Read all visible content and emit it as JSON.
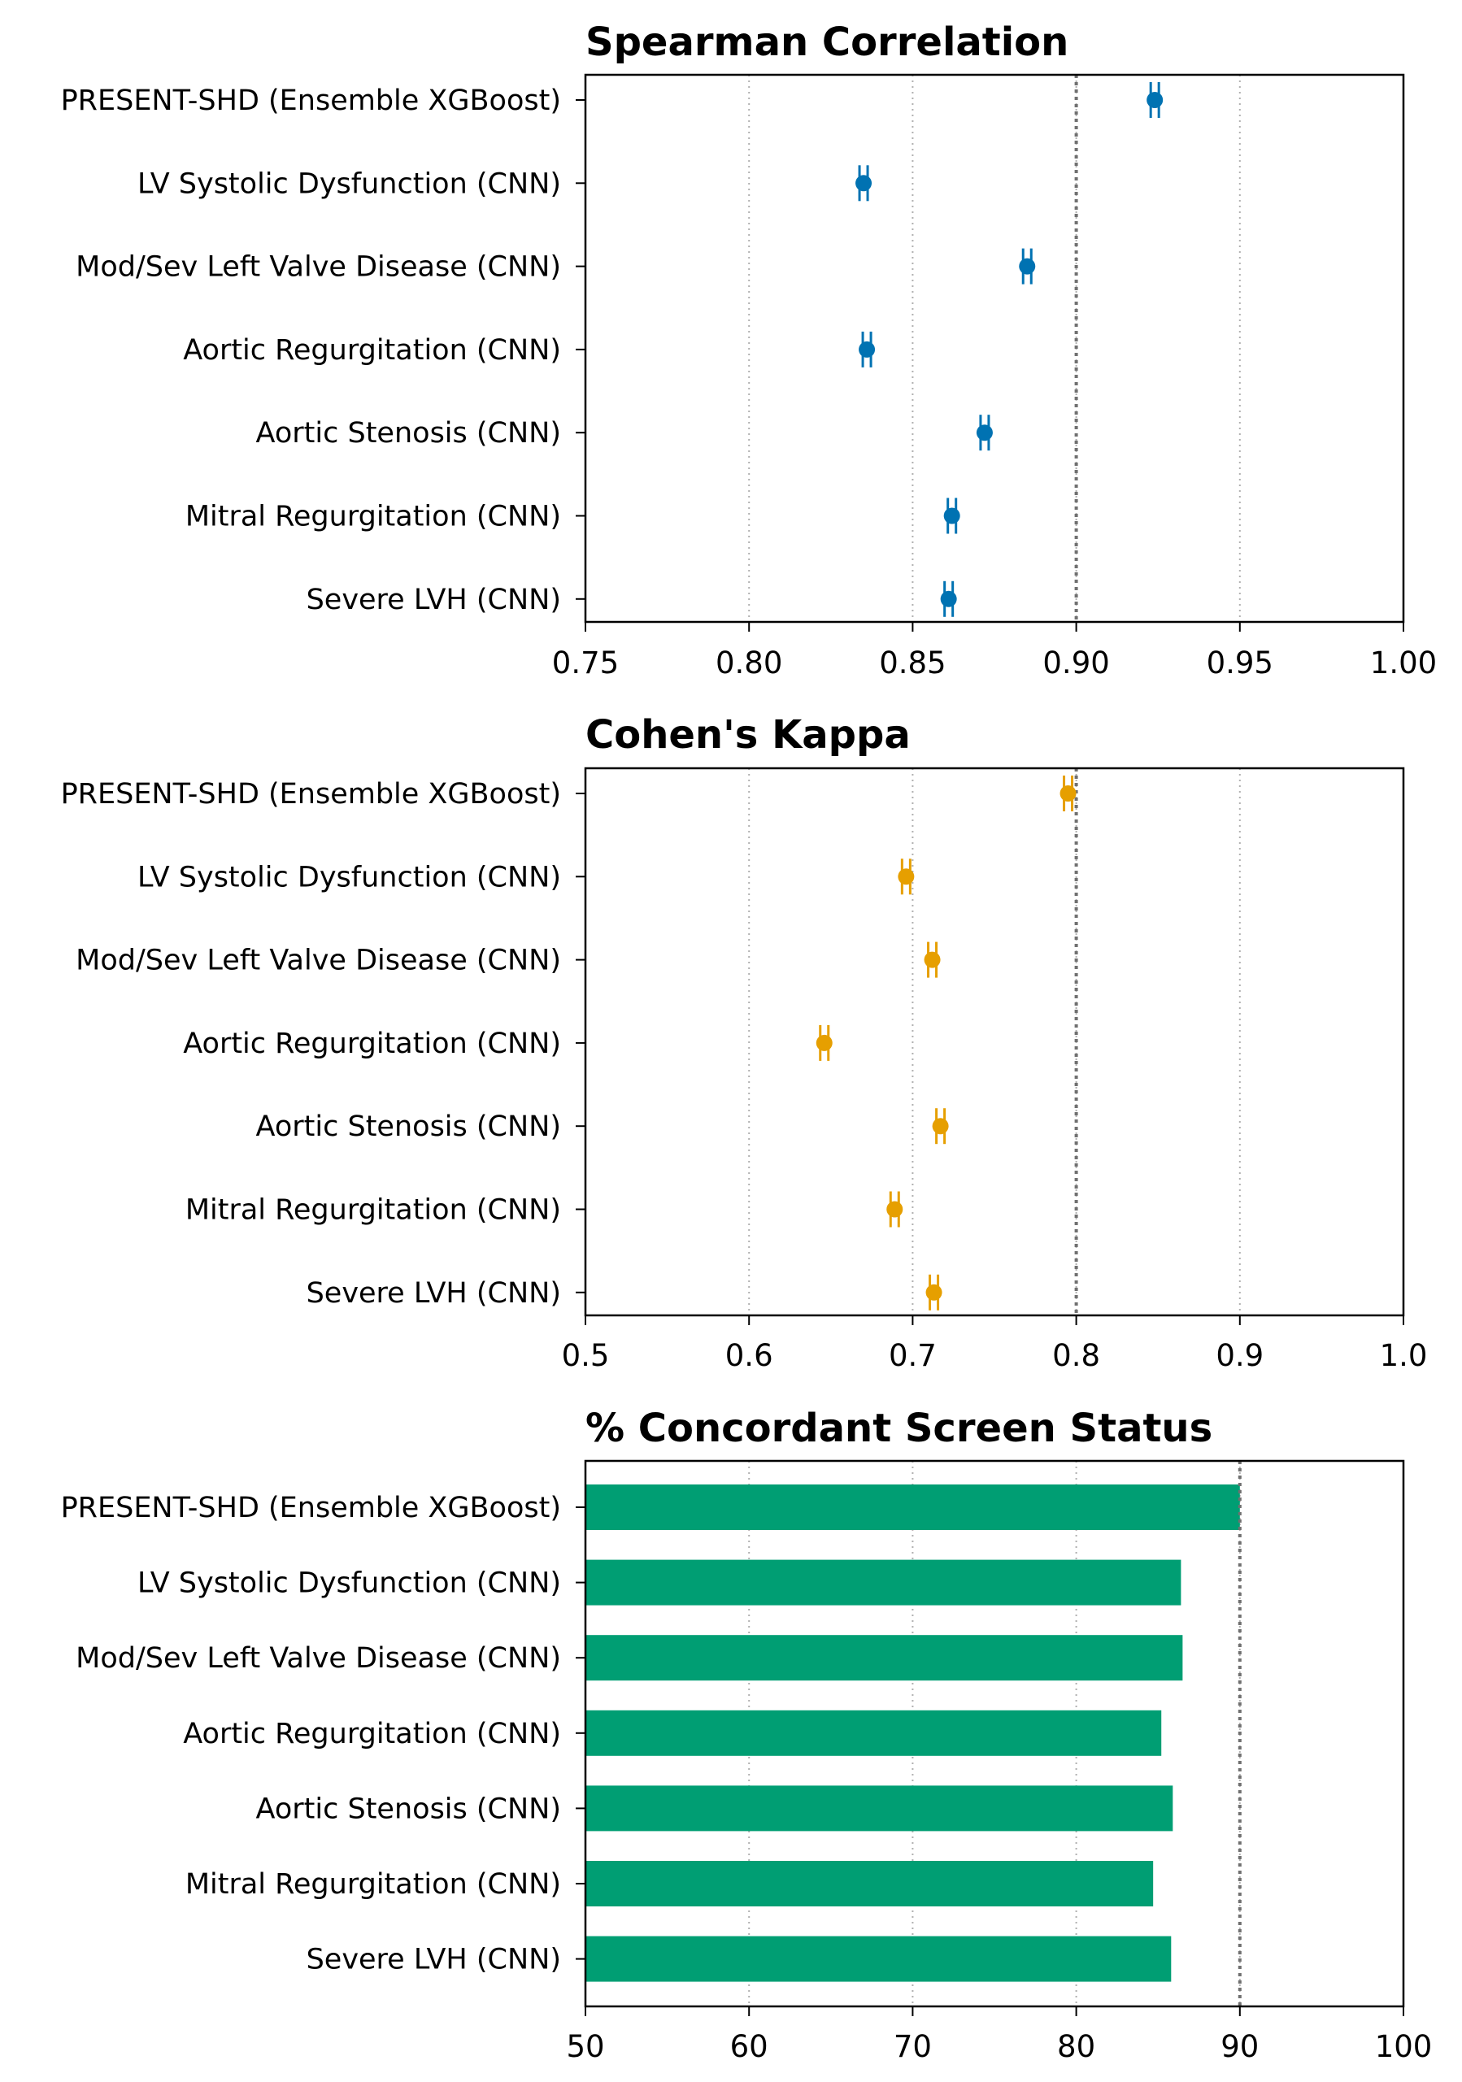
{
  "chart_data": [
    {
      "type": "scatter",
      "title": "Spearman Correlation",
      "categories": [
        "PRESENT-SHD (Ensemble XGBoost)",
        "LV Systolic Dysfunction (CNN)",
        "Mod/Sev Left Valve Disease (CNN)",
        "Aortic Regurgitation (CNN)",
        "Aortic Stenosis (CNN)",
        "Mitral Regurgitation (CNN)",
        "Severe LVH (CNN)"
      ],
      "values": [
        0.924,
        0.835,
        0.885,
        0.836,
        0.872,
        0.862,
        0.861
      ],
      "ci_lower": [
        0.923,
        0.834,
        0.884,
        0.835,
        0.871,
        0.861,
        0.86
      ],
      "ci_upper": [
        0.925,
        0.836,
        0.886,
        0.837,
        0.873,
        0.863,
        0.862
      ],
      "xlim": [
        0.75,
        1.0
      ],
      "xticks": [
        "0.75",
        "0.80",
        "0.85",
        "0.90",
        "0.95",
        "1.00"
      ],
      "reference_line": 0.9,
      "color": "#0072b2",
      "grid": "vertical dotted",
      "xlabel": "",
      "ylabel": ""
    },
    {
      "type": "scatter",
      "title": "Cohen's Kappa",
      "categories": [
        "PRESENT-SHD (Ensemble XGBoost)",
        "LV Systolic Dysfunction (CNN)",
        "Mod/Sev Left Valve Disease (CNN)",
        "Aortic Regurgitation (CNN)",
        "Aortic Stenosis (CNN)",
        "Mitral Regurgitation (CNN)",
        "Severe LVH (CNN)"
      ],
      "values": [
        0.795,
        0.696,
        0.712,
        0.646,
        0.717,
        0.689,
        0.713
      ],
      "ci_lower": [
        0.792,
        0.693,
        0.709,
        0.643,
        0.714,
        0.686,
        0.71
      ],
      "ci_upper": [
        0.798,
        0.699,
        0.715,
        0.649,
        0.72,
        0.692,
        0.716
      ],
      "xlim": [
        0.5,
        1.0
      ],
      "xticks": [
        "0.5",
        "0.6",
        "0.7",
        "0.8",
        "0.9",
        "1.0"
      ],
      "reference_line": 0.8,
      "color": "#e69f00",
      "grid": "vertical dotted",
      "xlabel": "",
      "ylabel": ""
    },
    {
      "type": "bar",
      "orientation": "horizontal",
      "title": "% Concordant Screen Status",
      "categories": [
        "PRESENT-SHD (Ensemble XGBoost)",
        "LV Systolic Dysfunction (CNN)",
        "Mod/Sev Left Valve Disease (CNN)",
        "Aortic Regurgitation (CNN)",
        "Aortic Stenosis (CNN)",
        "Mitral Regurgitation (CNN)",
        "Severe LVH (CNN)"
      ],
      "values": [
        90.0,
        86.4,
        86.5,
        85.2,
        85.9,
        84.7,
        85.8
      ],
      "xlim": [
        50,
        100
      ],
      "xticks": [
        "50",
        "60",
        "70",
        "80",
        "90",
        "100"
      ],
      "reference_line": 90,
      "color": "#009e73",
      "grid": "vertical dotted",
      "xlabel": "",
      "ylabel": ""
    }
  ]
}
